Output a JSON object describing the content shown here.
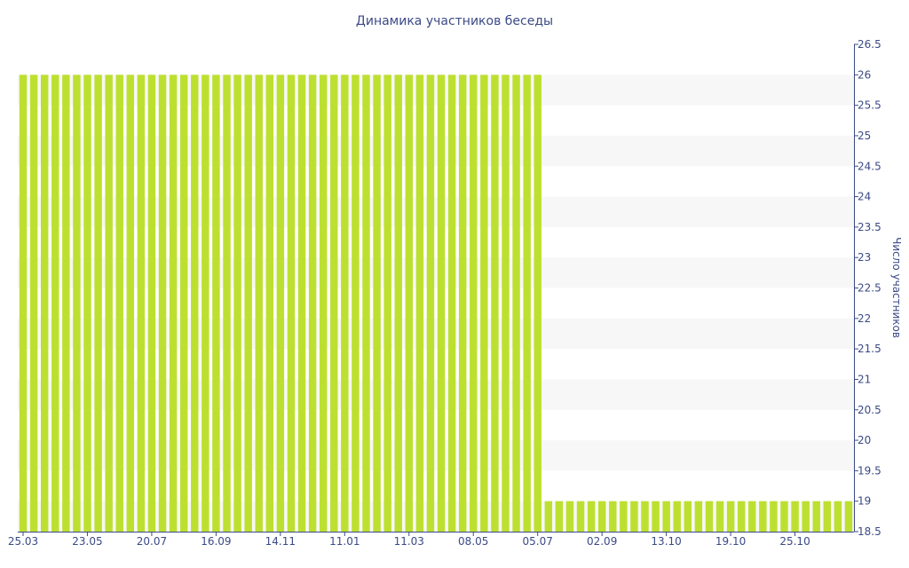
{
  "chart_data": {
    "type": "bar",
    "title": "Динамика участников беседы",
    "ylabel": "Число участников",
    "xlabel": "",
    "ylim": [
      18.5,
      26.5
    ],
    "y_ticks": [
      18.5,
      19,
      19.5,
      20,
      20.5,
      21,
      21.5,
      22,
      22.5,
      23,
      23.5,
      24,
      24.5,
      25,
      25.5,
      26,
      26.5
    ],
    "y_axis_side": "right",
    "grid": "alternating horizontal bands",
    "legend": "none",
    "x_tick_labels": [
      "25.03",
      "23.05",
      "20.07",
      "16.09",
      "14.11",
      "11.01",
      "11.03",
      "08.05",
      "05.07",
      "02.09",
      "13.10",
      "19.10",
      "25.10"
    ],
    "series": [
      {
        "values": [
          26,
          26,
          26,
          26,
          26,
          26,
          26,
          26,
          26,
          26,
          26,
          26,
          26,
          26,
          26,
          26,
          26,
          26,
          26,
          26,
          26,
          26,
          26,
          26,
          26,
          26,
          26,
          26,
          26,
          26,
          26,
          26,
          26,
          26,
          26,
          26,
          26,
          26,
          26,
          26,
          26,
          26,
          26,
          26,
          26,
          26,
          26,
          26,
          26,
          19,
          19,
          19,
          19,
          19,
          19,
          19,
          19,
          19,
          19,
          19,
          19,
          19,
          19,
          19,
          19,
          19,
          19,
          19,
          19,
          19,
          19,
          19,
          19,
          19,
          19,
          19,
          19,
          19
        ]
      }
    ],
    "colors": {
      "bar": "#bde030",
      "band": "#f7f7f7",
      "text": "#3b4a86",
      "axis": "#3b4a86"
    }
  }
}
